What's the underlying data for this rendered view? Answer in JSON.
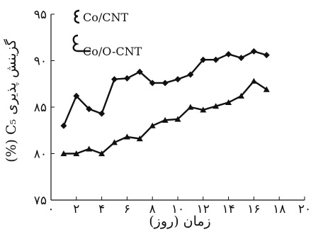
{
  "chart_data": {
    "type": "line",
    "xlabel": "زمان (روز)",
    "ylabel": "گزینش پذیری C₅ (%)",
    "xlim": [
      0,
      20
    ],
    "ylim": [
      75,
      95
    ],
    "x_ticks": [
      0,
      2,
      4,
      6,
      8,
      10,
      12,
      14,
      16,
      18,
      20
    ],
    "x_tick_labels": [
      "۰",
      "۲",
      "۴",
      "۶",
      "۸",
      "۱۰",
      "۱۲",
      "۱۴",
      "۱۶",
      "۱۸",
      "۲۰"
    ],
    "y_ticks": [
      75,
      80,
      85,
      90,
      95
    ],
    "y_tick_labels": [
      "۷۵",
      "۸۰",
      "۸۵",
      "۹۰",
      "۹۵"
    ],
    "grid": false,
    "legend_position": "top-left",
    "series": [
      {
        "name": "Co/CNT",
        "marker": "diamond",
        "color": "#111111",
        "points": [
          [
            1,
            83.0
          ],
          [
            2,
            86.2
          ],
          [
            3,
            84.8
          ],
          [
            4,
            84.3
          ],
          [
            5,
            88.0
          ],
          [
            6,
            88.1
          ],
          [
            7,
            88.8
          ],
          [
            8,
            87.6
          ],
          [
            9,
            87.6
          ],
          [
            10,
            88.0
          ],
          [
            11,
            88.5
          ],
          [
            12,
            90.1
          ],
          [
            13,
            90.1
          ],
          [
            14,
            90.7
          ],
          [
            15,
            90.3
          ],
          [
            16,
            91.0
          ],
          [
            17,
            90.6
          ]
        ]
      },
      {
        "name": "Co/O-CNT",
        "marker": "triangle",
        "color": "#111111",
        "points": [
          [
            1,
            80.0
          ],
          [
            2,
            80.0
          ],
          [
            3,
            80.5
          ],
          [
            4,
            80.0
          ],
          [
            5,
            81.2
          ],
          [
            6,
            81.8
          ],
          [
            7,
            81.6
          ],
          [
            8,
            83.0
          ],
          [
            9,
            83.6
          ],
          [
            10,
            83.7
          ],
          [
            11,
            85.0
          ],
          [
            12,
            84.7
          ],
          [
            13,
            85.1
          ],
          [
            14,
            85.5
          ],
          [
            15,
            86.2
          ],
          [
            16,
            87.8
          ],
          [
            17,
            86.9
          ]
        ]
      }
    ]
  }
}
